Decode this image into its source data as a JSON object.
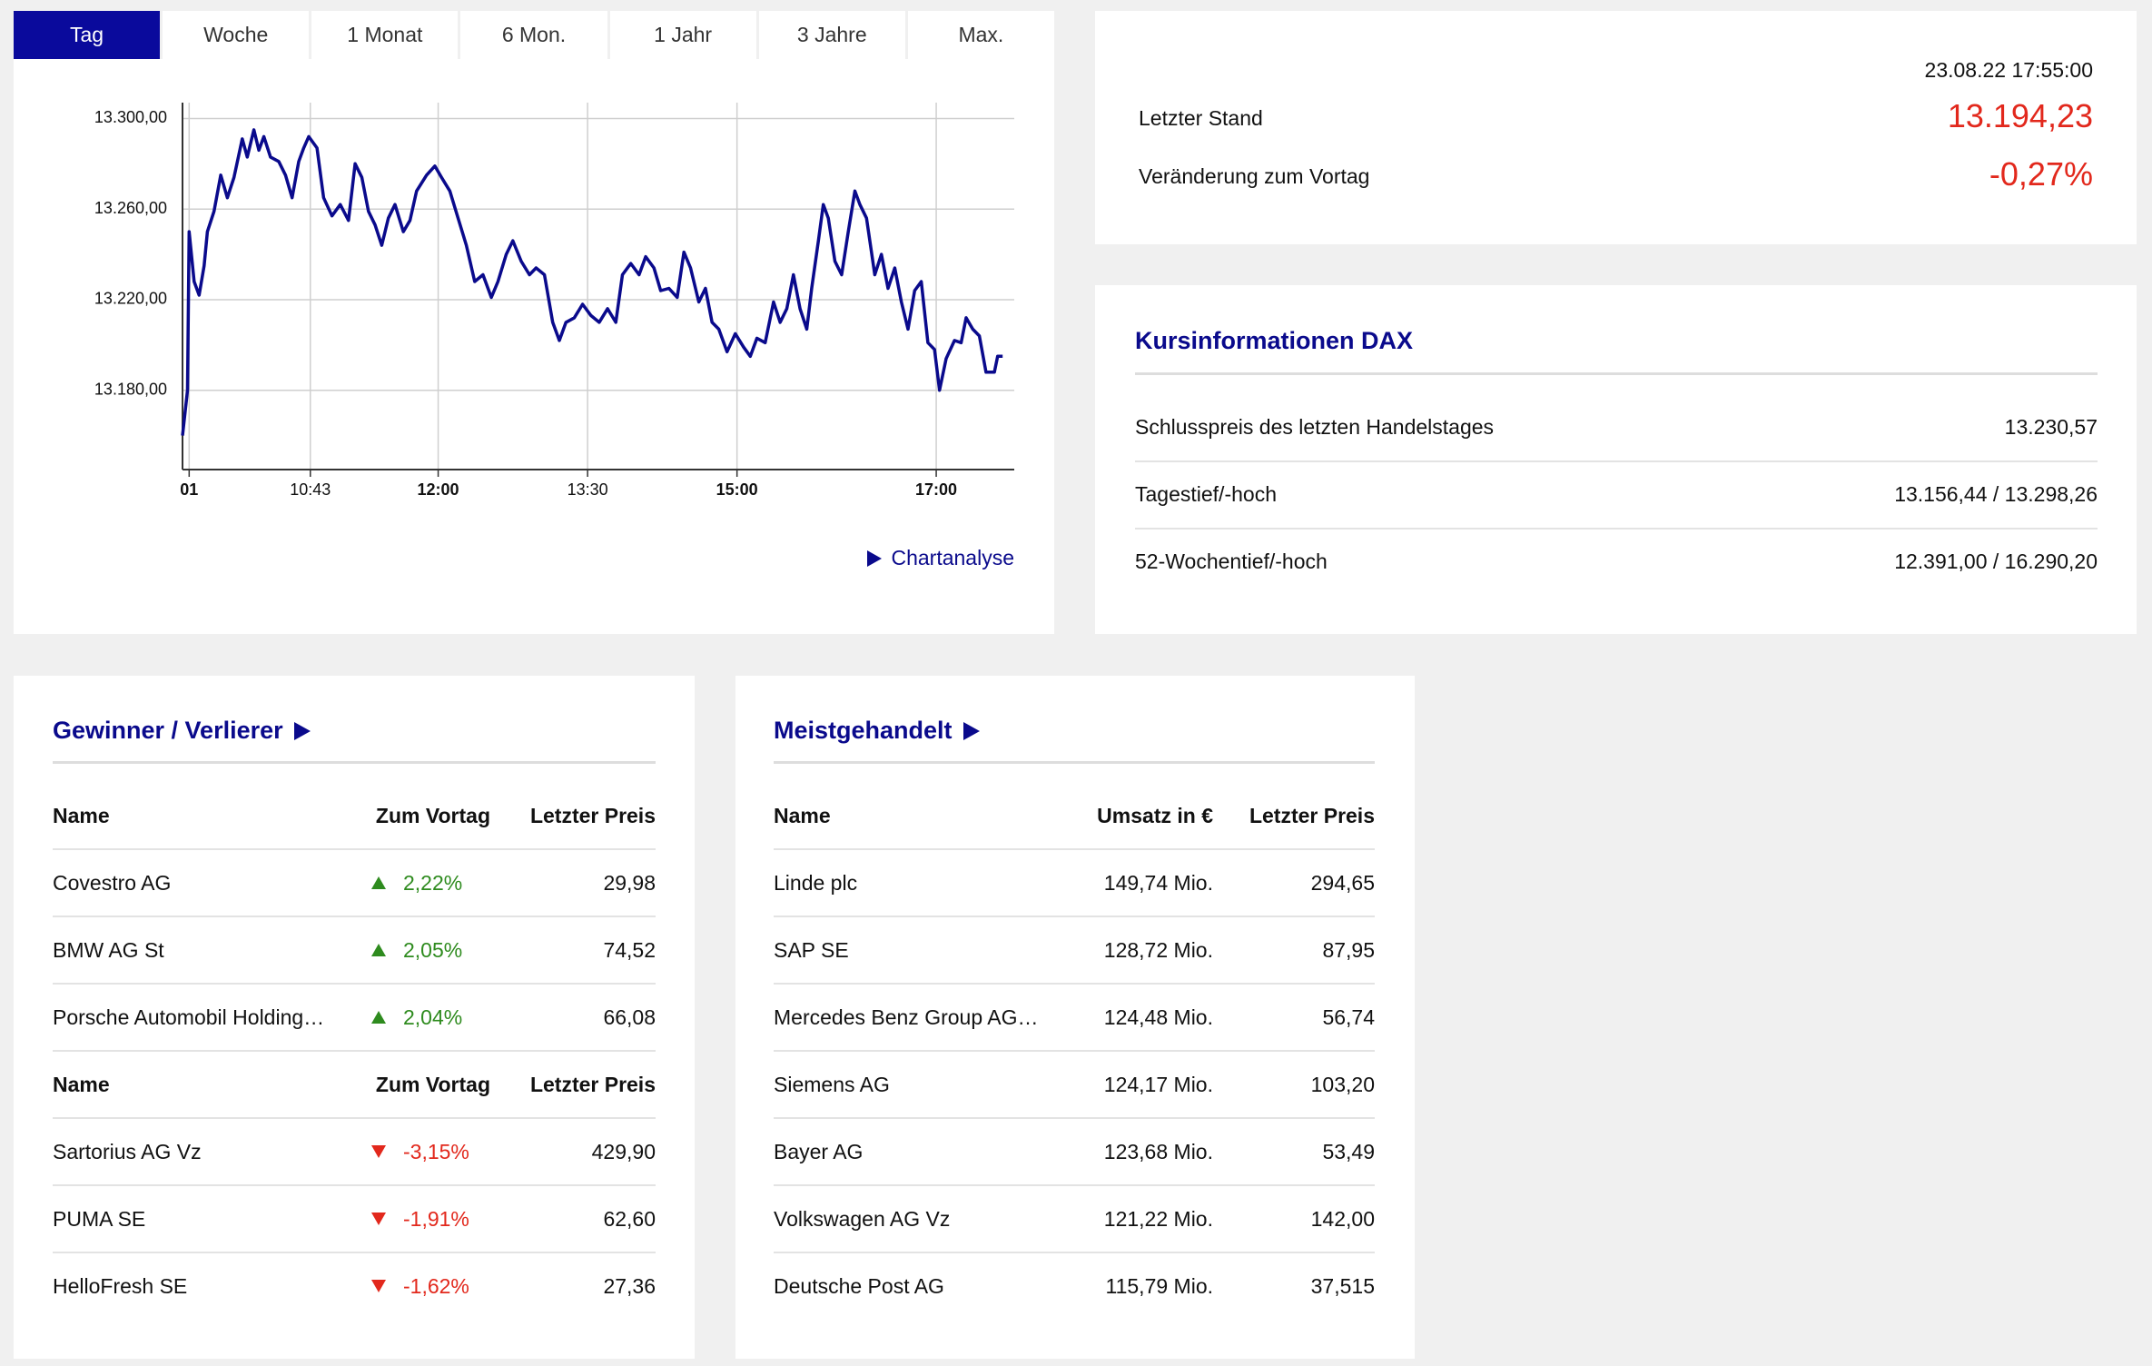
{
  "tabs": [
    "Tag",
    "Woche",
    "1 Monat",
    "6 Mon.",
    "1 Jahr",
    "3 Jahre",
    "Max."
  ],
  "chart_data": {
    "type": "line",
    "x": [
      566,
      569,
      570,
      573,
      576,
      579,
      581,
      585,
      589,
      593,
      597,
      602,
      605,
      609,
      612,
      615,
      619,
      624,
      628,
      632,
      636,
      639,
      642,
      647,
      651,
      656,
      661,
      666,
      670,
      674,
      678,
      682,
      686,
      690,
      694,
      699,
      703,
      707,
      713,
      718,
      722,
      727,
      732,
      737,
      742,
      747,
      752,
      756,
      761,
      765,
      770,
      775,
      779,
      784,
      789,
      793,
      797,
      802,
      807,
      812,
      817,
      822,
      827,
      831,
      836,
      841,
      845,
      850,
      854,
      859,
      864,
      868,
      872,
      877,
      881,
      885,
      889,
      894,
      899,
      904,
      908,
      912,
      917,
      922,
      926,
      930,
      934,
      938,
      942,
      945,
      949,
      952,
      955,
      959,
      963,
      967,
      971,
      974,
      978,
      983,
      987,
      991,
      995,
      999,
      1003,
      1007,
      1011,
      1015,
      1019,
      1022,
      1026,
      1031,
      1035,
      1038,
      1042,
      1046,
      1050,
      1055,
      1057,
      1060
    ],
    "series": [
      {
        "color": "#0a0a8c",
        "values": [
          13160,
          13180,
          13250,
          13228,
          13222,
          13235,
          13250,
          13259,
          13275,
          13265,
          13274,
          13291,
          13283,
          13295,
          13286,
          13292,
          13283,
          13281,
          13275,
          13265,
          13281,
          13287,
          13292,
          13287,
          13265,
          13257,
          13262,
          13255,
          13280,
          13274,
          13259,
          13253,
          13244,
          13256,
          13262,
          13250,
          13255,
          13268,
          13275,
          13279,
          13274,
          13268,
          13256,
          13244,
          13228,
          13231,
          13221,
          13228,
          13240,
          13246,
          13237,
          13231,
          13234,
          13231,
          13210,
          13202,
          13210,
          13212,
          13218,
          13213,
          13210,
          13216,
          13210,
          13231,
          13236,
          13231,
          13239,
          13234,
          13224,
          13225,
          13221,
          13241,
          13234,
          13219,
          13225,
          13210,
          13207,
          13197,
          13205,
          13199,
          13195,
          13203,
          13201,
          13219,
          13210,
          13216,
          13231,
          13216,
          13207,
          13225,
          13246,
          13262,
          13256,
          13237,
          13231,
          13250,
          13268,
          13262,
          13256,
          13231,
          13240,
          13225,
          13234,
          13219,
          13207,
          13224,
          13228,
          13201,
          13198,
          13180,
          13194,
          13202,
          13201,
          13212,
          13207,
          13204,
          13188,
          13188,
          13195,
          13195
        ]
      }
    ],
    "xlim": [
      566,
      1067
    ],
    "ylim": [
      13145,
      13307
    ],
    "xticks": [
      {
        "value": 570,
        "label": "01",
        "bold": true
      },
      {
        "value": 643,
        "label": "10:43"
      },
      {
        "value": 720,
        "label": "12:00",
        "bold": true
      },
      {
        "value": 810,
        "label": "13:30"
      },
      {
        "value": 900,
        "label": "15:00",
        "bold": true
      },
      {
        "value": 1020,
        "label": "17:00",
        "bold": true
      }
    ],
    "yticks": [
      {
        "value": 13180,
        "label": "13.180,00"
      },
      {
        "value": 13220,
        "label": "13.220,00"
      },
      {
        "value": 13260,
        "label": "13.260,00"
      },
      {
        "value": 13300,
        "label": "13.300,00"
      }
    ],
    "grid": true
  },
  "chart_link": "Chartanalyse",
  "quote": {
    "timestamp": "23.08.22 17:55:00",
    "last_label": "Letzter Stand",
    "last_value": "13.194,23",
    "change_label": "Veränderung zum Vortag",
    "change_value": "-0,27%"
  },
  "kursinfo": {
    "title": "Kursinformationen DAX",
    "rows": [
      [
        "Schlusspreis des letzten Handelstages",
        "13.230,57"
      ],
      [
        "Tagestief/-hoch",
        "13.156,44 / 13.298,26"
      ],
      [
        "52-Wochentief/-hoch",
        "12.391,00 / 16.290,20"
      ]
    ]
  },
  "movers": {
    "title": "Gewinner / Verlierer",
    "sections": [
      {
        "header": [
          "Name",
          "Zum Vortag",
          "Letzter Preis"
        ],
        "rows": [
          [
            "Covestro AG",
            "2,22%",
            "29,98"
          ],
          [
            "BMW AG St",
            "2,05%",
            "74,52"
          ],
          [
            "Porsche Automobil Holding…",
            "2,04%",
            "66,08"
          ]
        ]
      },
      {
        "header": [
          "Name",
          "Zum Vortag",
          "Letzter Preis"
        ],
        "rows": [
          [
            "Sartorius AG Vz",
            "-3,15%",
            "429,90"
          ],
          [
            "PUMA SE",
            "-1,91%",
            "62,60"
          ],
          [
            "HelloFresh SE",
            "-1,62%",
            "27,36"
          ]
        ]
      }
    ]
  },
  "most_traded": {
    "title": "Meistgehandelt",
    "header": [
      "Name",
      "Umsatz in €",
      "Letzter Preis"
    ],
    "rows": [
      [
        "Linde plc",
        "149,74 Mio.",
        "294,65"
      ],
      [
        "SAP SE",
        "128,72 Mio.",
        "87,95"
      ],
      [
        "Mercedes Benz Group AG…",
        "124,48 Mio.",
        "56,74"
      ],
      [
        "Siemens AG",
        "124,17 Mio.",
        "103,20"
      ],
      [
        "Bayer AG",
        "123,68 Mio.",
        "53,49"
      ],
      [
        "Volkswagen AG Vz",
        "121,22 Mio.",
        "142,00"
      ],
      [
        "Deutsche Post AG",
        "115,79 Mio.",
        "37,515"
      ]
    ]
  }
}
